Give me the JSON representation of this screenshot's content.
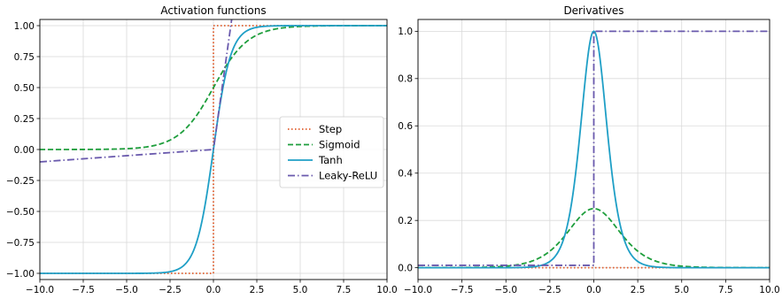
{
  "chart_data": [
    {
      "type": "line",
      "title": "Activation functions",
      "xlabel": "",
      "ylabel": "",
      "xlim": [
        -10,
        10
      ],
      "ylim": [
        -1.05,
        1.05
      ],
      "xticks": [
        -10,
        -7.5,
        -5,
        -2.5,
        0,
        2.5,
        5,
        7.5,
        10
      ],
      "xtick_labels": [
        "−10.0",
        "−7.5",
        "−5.0",
        "−2.5",
        "0.0",
        "2.5",
        "5.0",
        "7.5",
        "10.0"
      ],
      "yticks": [
        -1,
        -0.75,
        -0.5,
        -0.25,
        0,
        0.25,
        0.5,
        0.75,
        1
      ],
      "ytick_labels": [
        "−1.00",
        "−0.75",
        "−0.50",
        "−0.25",
        "0.00",
        "0.25",
        "0.50",
        "0.75",
        "1.00"
      ],
      "grid": true,
      "legend": {
        "placement": "center-right",
        "entries": [
          "Step",
          "Sigmoid",
          "Tanh",
          "Leaky-ReLU"
        ]
      },
      "series": [
        {
          "name": "Step",
          "function": "sign",
          "color": "#e15f2f",
          "style": "dotted",
          "x": [
            -10,
            0,
            0,
            10
          ],
          "y": [
            -1,
            -1,
            1,
            1
          ]
        },
        {
          "name": "Sigmoid",
          "function": "sigmoid",
          "color": "#1e9e3c",
          "style": "dashed",
          "x": [
            -10,
            -5,
            -2.5,
            0,
            2.5,
            5,
            10
          ],
          "y": [
            4.54e-05,
            0.0067,
            0.0759,
            0.5,
            0.9241,
            0.9933,
            0.99995
          ]
        },
        {
          "name": "Tanh",
          "function": "tanh",
          "color": "#1f9fc6",
          "style": "solid",
          "x": [
            -10,
            -2.5,
            -1,
            0,
            1,
            2.5,
            10
          ],
          "y": [
            -1,
            -0.9866,
            -0.7616,
            0,
            0.7616,
            0.9866,
            1
          ]
        },
        {
          "name": "Leaky-ReLU",
          "function": "leaky_relu",
          "alpha": 0.01,
          "color": "#6a5aad",
          "style": "dashdot",
          "x": [
            -10,
            0,
            1.05
          ],
          "y": [
            -0.1,
            0,
            1.05
          ]
        }
      ]
    },
    {
      "type": "line",
      "title": "Derivatives",
      "xlabel": "",
      "ylabel": "",
      "xlim": [
        -10,
        10
      ],
      "ylim": [
        -0.05,
        1.05
      ],
      "xticks": [
        -10,
        -7.5,
        -5,
        -2.5,
        0,
        2.5,
        5,
        7.5,
        10
      ],
      "xtick_labels": [
        "−10.0",
        "−7.5",
        "−5.0",
        "−2.5",
        "0.0",
        "2.5",
        "5.0",
        "7.5",
        "10.0"
      ],
      "yticks": [
        0,
        0.2,
        0.4,
        0.6,
        0.8,
        1.0
      ],
      "ytick_labels": [
        "0.0",
        "0.2",
        "0.4",
        "0.6",
        "0.8",
        "1.0"
      ],
      "grid": true,
      "series": [
        {
          "name": "Step",
          "function": "step_derivative",
          "color": "#e15f2f",
          "style": "dotted",
          "x": [
            -10,
            10
          ],
          "y": [
            0,
            0
          ]
        },
        {
          "name": "Sigmoid",
          "function": "sigmoid_derivative",
          "color": "#1e9e3c",
          "style": "dashed",
          "x": [
            -10,
            -2.5,
            0,
            2.5,
            10
          ],
          "y": [
            4.54e-05,
            0.0701,
            0.25,
            0.0701,
            4.54e-05
          ]
        },
        {
          "name": "Tanh",
          "function": "tanh_derivative",
          "color": "#1f9fc6",
          "style": "solid",
          "x": [
            -10,
            -2.5,
            -1,
            0,
            1,
            2.5,
            10
          ],
          "y": [
            0,
            0.0266,
            0.42,
            1,
            0.42,
            0.0266,
            0
          ]
        },
        {
          "name": "Leaky-ReLU",
          "function": "leaky_relu_derivative",
          "alpha": 0.01,
          "color": "#6a5aad",
          "style": "dashdot",
          "x": [
            -10,
            0,
            0,
            10
          ],
          "y": [
            0.01,
            0.01,
            1,
            1
          ]
        }
      ]
    }
  ]
}
